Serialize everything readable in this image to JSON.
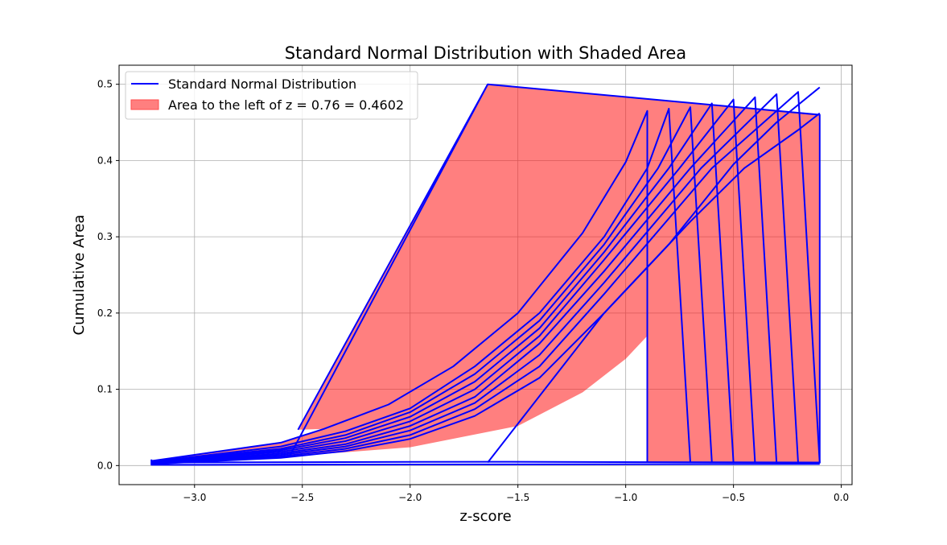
{
  "chart_data": {
    "type": "line",
    "title": "Standard Normal Distribution with Shaded Area",
    "xlabel": "z-score",
    "ylabel": "Cumulative Area",
    "xlim": [
      -3.35,
      0.05
    ],
    "ylim": [
      -0.025,
      0.525
    ],
    "xticks": [
      -3.0,
      -2.5,
      -2.0,
      -1.5,
      -1.0,
      -0.5,
      0.0
    ],
    "xtick_labels": [
      "−3.0",
      "−2.5",
      "−2.0",
      "−1.5",
      "−1.0",
      "−0.5",
      "0.0"
    ],
    "yticks": [
      0.0,
      0.1,
      0.2,
      0.3,
      0.4,
      0.5
    ],
    "ytick_labels": [
      "0.0",
      "0.1",
      "0.2",
      "0.3",
      "0.4",
      "0.5"
    ],
    "grid": true,
    "legend_position": "top-left",
    "legend": [
      {
        "label": "Standard Normal Distribution",
        "kind": "line",
        "color": "#0000ff"
      },
      {
        "label": "Area to the left of z = 0.76 = 0.4602",
        "kind": "patch",
        "color": "#ff7f7f"
      }
    ],
    "line_color": "#0000ff",
    "fill_color": "#ff0000",
    "fill_alpha": 0.5,
    "shaded_polygon": [
      [
        -3.2,
        0.001
      ],
      [
        -2.55,
        0.012
      ],
      [
        -2.0,
        0.024
      ],
      [
        -1.5,
        0.052
      ],
      [
        -1.2,
        0.096
      ],
      [
        -1.0,
        0.14
      ],
      [
        -0.9,
        0.17
      ],
      [
        -0.9,
        0.465
      ],
      [
        -1.0,
        0.398
      ],
      [
        -1.2,
        0.305
      ],
      [
        -1.5,
        0.2
      ],
      [
        -1.8,
        0.13
      ],
      [
        -2.1,
        0.08
      ],
      [
        -2.4,
        0.048
      ],
      [
        -2.6,
        0.03
      ],
      [
        -3.2,
        0.006
      ]
    ],
    "shaded_polygon_2": [
      [
        -2.52,
        0.047
      ],
      [
        -1.64,
        0.5
      ],
      [
        -0.1,
        0.46
      ],
      [
        -0.1,
        0.003
      ],
      [
        -0.9,
        0.004
      ],
      [
        -0.9,
        0.465
      ],
      [
        -1.0,
        0.398
      ],
      [
        -1.2,
        0.305
      ],
      [
        -1.5,
        0.2
      ],
      [
        -1.8,
        0.13
      ],
      [
        -2.1,
        0.08
      ],
      [
        -2.4,
        0.048
      ]
    ],
    "lines": [
      {
        "name": "",
        "points": [
          [
            -2.52,
            0.047
          ],
          [
            -1.64,
            0.5
          ],
          [
            -0.1,
            0.46
          ],
          [
            -0.1,
            0.003
          ]
        ]
      },
      {
        "name": "",
        "points": [
          [
            -3.2,
            0.006
          ],
          [
            -2.6,
            0.03
          ],
          [
            -2.4,
            0.048
          ],
          [
            -2.1,
            0.08
          ],
          [
            -1.8,
            0.13
          ],
          [
            -1.5,
            0.2
          ],
          [
            -1.2,
            0.305
          ],
          [
            -1.0,
            0.398
          ],
          [
            -0.9,
            0.465
          ],
          [
            -0.9,
            0.005
          ]
        ]
      },
      {
        "name": "",
        "points": [
          [
            -3.2,
            0.005
          ],
          [
            -2.6,
            0.025
          ],
          [
            -2.3,
            0.045
          ],
          [
            -2.0,
            0.075
          ],
          [
            -1.7,
            0.13
          ],
          [
            -1.4,
            0.2
          ],
          [
            -1.1,
            0.3
          ],
          [
            -0.9,
            0.39
          ],
          [
            -0.8,
            0.468
          ],
          [
            -0.7,
            0.004
          ]
        ]
      },
      {
        "name": "",
        "points": [
          [
            -3.2,
            0.005
          ],
          [
            -2.6,
            0.022
          ],
          [
            -2.3,
            0.04
          ],
          [
            -2.0,
            0.07
          ],
          [
            -1.7,
            0.12
          ],
          [
            -1.4,
            0.19
          ],
          [
            -1.1,
            0.29
          ],
          [
            -0.85,
            0.39
          ],
          [
            -0.7,
            0.47
          ],
          [
            -0.6,
            0.004
          ]
        ]
      },
      {
        "name": "",
        "points": [
          [
            -3.2,
            0.004
          ],
          [
            -2.6,
            0.02
          ],
          [
            -2.3,
            0.036
          ],
          [
            -2.0,
            0.064
          ],
          [
            -1.7,
            0.11
          ],
          [
            -1.4,
            0.18
          ],
          [
            -1.1,
            0.28
          ],
          [
            -0.8,
            0.39
          ],
          [
            -0.6,
            0.475
          ],
          [
            -0.5,
            0.004
          ]
        ]
      },
      {
        "name": "",
        "points": [
          [
            -3.2,
            0.004
          ],
          [
            -2.6,
            0.018
          ],
          [
            -2.3,
            0.032
          ],
          [
            -2.0,
            0.058
          ],
          [
            -1.7,
            0.1
          ],
          [
            -1.4,
            0.17
          ],
          [
            -1.1,
            0.27
          ],
          [
            -0.75,
            0.39
          ],
          [
            -0.5,
            0.48
          ],
          [
            -0.4,
            0.004
          ]
        ]
      },
      {
        "name": "",
        "points": [
          [
            -3.2,
            0.003
          ],
          [
            -2.6,
            0.016
          ],
          [
            -2.3,
            0.028
          ],
          [
            -2.0,
            0.052
          ],
          [
            -1.7,
            0.09
          ],
          [
            -1.4,
            0.16
          ],
          [
            -1.1,
            0.255
          ],
          [
            -0.7,
            0.39
          ],
          [
            -0.4,
            0.483
          ],
          [
            -0.3,
            0.003
          ]
        ]
      },
      {
        "name": "",
        "points": [
          [
            -3.2,
            0.003
          ],
          [
            -2.6,
            0.014
          ],
          [
            -2.3,
            0.025
          ],
          [
            -2.0,
            0.046
          ],
          [
            -1.7,
            0.082
          ],
          [
            -1.4,
            0.145
          ],
          [
            -1.1,
            0.24
          ],
          [
            -0.65,
            0.39
          ],
          [
            -0.3,
            0.487
          ],
          [
            -0.2,
            0.003
          ]
        ]
      },
      {
        "name": "",
        "points": [
          [
            -3.2,
            0.002
          ],
          [
            -2.6,
            0.012
          ],
          [
            -2.3,
            0.022
          ],
          [
            -2.0,
            0.04
          ],
          [
            -1.7,
            0.074
          ],
          [
            -1.4,
            0.13
          ],
          [
            -1.1,
            0.225
          ],
          [
            -0.6,
            0.39
          ],
          [
            -0.2,
            0.49
          ],
          [
            -0.1,
            0.003
          ]
        ]
      },
      {
        "name": "",
        "points": [
          [
            -3.2,
            0.002
          ],
          [
            -2.6,
            0.01
          ],
          [
            -2.3,
            0.019
          ],
          [
            -2.0,
            0.035
          ],
          [
            -1.7,
            0.065
          ],
          [
            -1.4,
            0.115
          ],
          [
            -1.1,
            0.2
          ],
          [
            -0.8,
            0.29
          ],
          [
            -0.5,
            0.395
          ],
          [
            -0.3,
            0.45
          ],
          [
            -0.1,
            0.496
          ]
        ]
      },
      {
        "name": "",
        "points": [
          [
            -2.56,
            0.012
          ],
          [
            -1.64,
            0.5
          ]
        ]
      },
      {
        "name": "",
        "points": [
          [
            -1.64,
            0.004
          ],
          [
            -1.1,
            0.2
          ],
          [
            -0.7,
            0.32
          ],
          [
            -0.45,
            0.39
          ],
          [
            -0.2,
            0.44
          ],
          [
            -0.1,
            0.462
          ]
        ]
      },
      {
        "name": "",
        "points": [
          [
            -3.2,
            0.008
          ],
          [
            -3.2,
            0.001
          ],
          [
            -0.1,
            0.002
          ]
        ]
      },
      {
        "name": "",
        "points": [
          [
            -3.2,
            0.004
          ],
          [
            -1.64,
            0.005
          ],
          [
            -0.1,
            0.004
          ]
        ]
      }
    ]
  }
}
